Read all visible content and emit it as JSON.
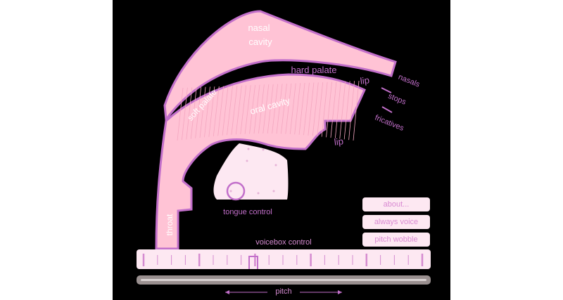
{
  "colors": {
    "background": "#000000",
    "tract_fill": "#ffc3d5",
    "tract_outline": "#c26fca",
    "label": "#d58bd0",
    "button_fill": "#fde8f2"
  },
  "tract": {
    "nasal_cavity_line1": "nasal",
    "nasal_cavity_line2": "cavity",
    "hard_palate": "hard palate",
    "soft_palate": "soft palate",
    "oral_cavity": "oral cavity",
    "lip_upper": "lip",
    "lip_lower": "lip",
    "throat": "throat",
    "tongue_control": "tongue control"
  },
  "place_labels": {
    "nasals": "nasals",
    "stops": "stops",
    "fricatives": "fricatives"
  },
  "buttons": {
    "about": "about...",
    "always_voice": "always voice",
    "pitch_wobble": "pitch wobble"
  },
  "voicebox": {
    "label": "voicebox control"
  },
  "pitch": {
    "label": "pitch"
  }
}
